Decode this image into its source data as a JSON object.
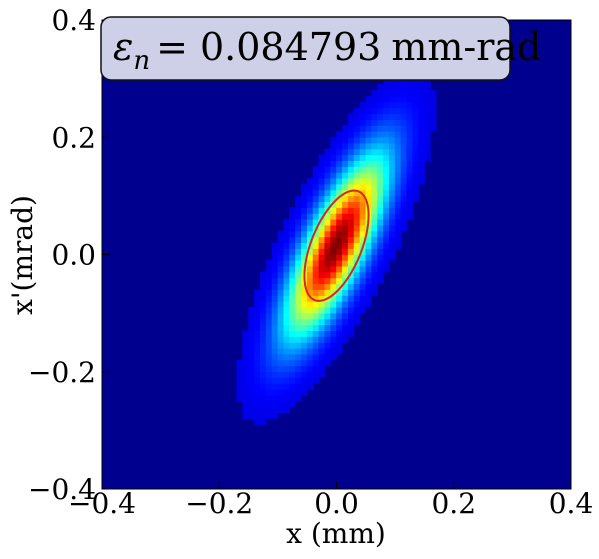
{
  "chart_data": {
    "type": "heatmap",
    "title": "",
    "annotation": {
      "symbol": "ε",
      "subscript": "n",
      "equals": "=",
      "value": "0.084793",
      "unit": "mm-rad",
      "placement": "top-left"
    },
    "xlabel": "x (mm)",
    "ylabel": "x'(mrad)",
    "xlim": [
      -0.4,
      0.4
    ],
    "ylim": [
      -0.4,
      0.4
    ],
    "x_ticks": [
      -0.4,
      -0.2,
      0.0,
      0.2,
      0.4
    ],
    "y_ticks": [
      -0.4,
      -0.2,
      0.0,
      0.2,
      0.4
    ],
    "x_tick_labels": [
      "−0.4",
      "−0.2",
      "0.0",
      "0.2",
      "0.4"
    ],
    "y_tick_labels": [
      "−0.4",
      "−0.2",
      "0.0",
      "0.2",
      "0.4"
    ],
    "grid": false,
    "colormap": "jet",
    "background_color": "#00008f",
    "distribution": {
      "center": [
        0.0,
        0.015
      ],
      "sigma_x": 0.05,
      "sigma_xp": 0.09,
      "correlation": 0.78
    },
    "contour": {
      "color": "#d62728",
      "center": [
        0.0,
        0.015
      ],
      "semi_major": 0.1,
      "semi_minor": 0.043,
      "angle_deg": 68
    }
  }
}
